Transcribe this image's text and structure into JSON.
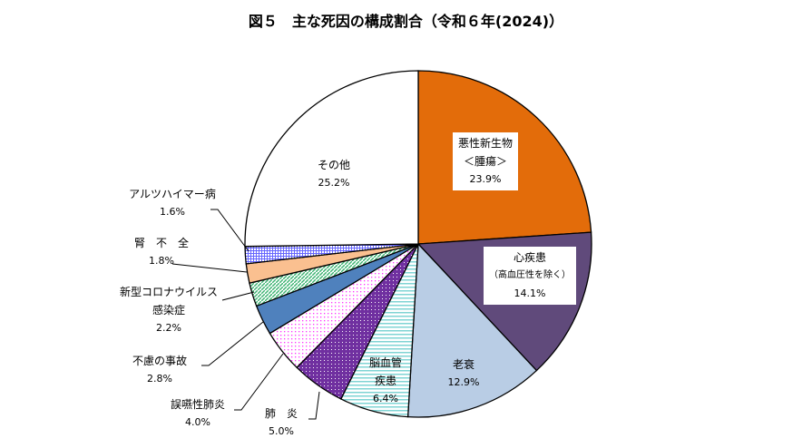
{
  "chart_data": {
    "type": "pie",
    "title": "図５　主な死因の構成割合（令和６年(2024)）",
    "unit": "%",
    "start": "top",
    "direction": "clockwise",
    "slices": [
      {
        "name": "悪性新生物＜腫瘍＞",
        "line1": "悪性新生物",
        "line2": "＜腫瘍＞",
        "value": 23.9,
        "label": "23.9%",
        "color": "#E36C0A",
        "pattern": "solid"
      },
      {
        "name": "心疾患（高血圧性を除く）",
        "line1": "心疾患",
        "line2": "（高血圧性を除く）",
        "value": 14.1,
        "label": "14.1%",
        "color": "#604A7B",
        "pattern": "solid"
      },
      {
        "name": "老衰",
        "line1": "老衰",
        "value": 12.9,
        "label": "12.9%",
        "color": "#B9CDE5",
        "pattern": "solid"
      },
      {
        "name": "脳血管疾患",
        "line1": "脳血管",
        "line2": "疾患",
        "value": 6.4,
        "label": "6.4%",
        "color": "#7FD4D4",
        "pattern": "hstripes"
      },
      {
        "name": "肺炎",
        "line1": "肺　炎",
        "value": 5.0,
        "label": "5.0%",
        "color": "#7030A0",
        "pattern": "dots-dark"
      },
      {
        "name": "誤嚥性肺炎",
        "line1": "誤嚥性肺炎",
        "value": 4.0,
        "label": "4.0%",
        "color": "#FF33FF",
        "pattern": "dots-light"
      },
      {
        "name": "不慮の事故",
        "line1": "不慮の事故",
        "value": 2.8,
        "label": "2.8%",
        "color": "#4F81BD",
        "pattern": "solid"
      },
      {
        "name": "新型コロナウイルス感染症",
        "line1": "新型コロナウイルス",
        "line2": "感染症",
        "value": 2.2,
        "label": "2.2%",
        "color": "#3CB371",
        "pattern": "diag"
      },
      {
        "name": "腎不全",
        "line1": "腎　不　全",
        "value": 1.8,
        "label": "1.8%",
        "color": "#FAC090",
        "pattern": "solid"
      },
      {
        "name": "アルツハイマー病",
        "line1": "アルツハイマー病",
        "value": 1.6,
        "label": "1.6%",
        "color": "#6666FF",
        "pattern": "grid"
      },
      {
        "name": "その他",
        "line1": "その他",
        "value": 25.2,
        "label": "25.2%",
        "color": "#FFFFFF",
        "pattern": "solid"
      }
    ]
  }
}
